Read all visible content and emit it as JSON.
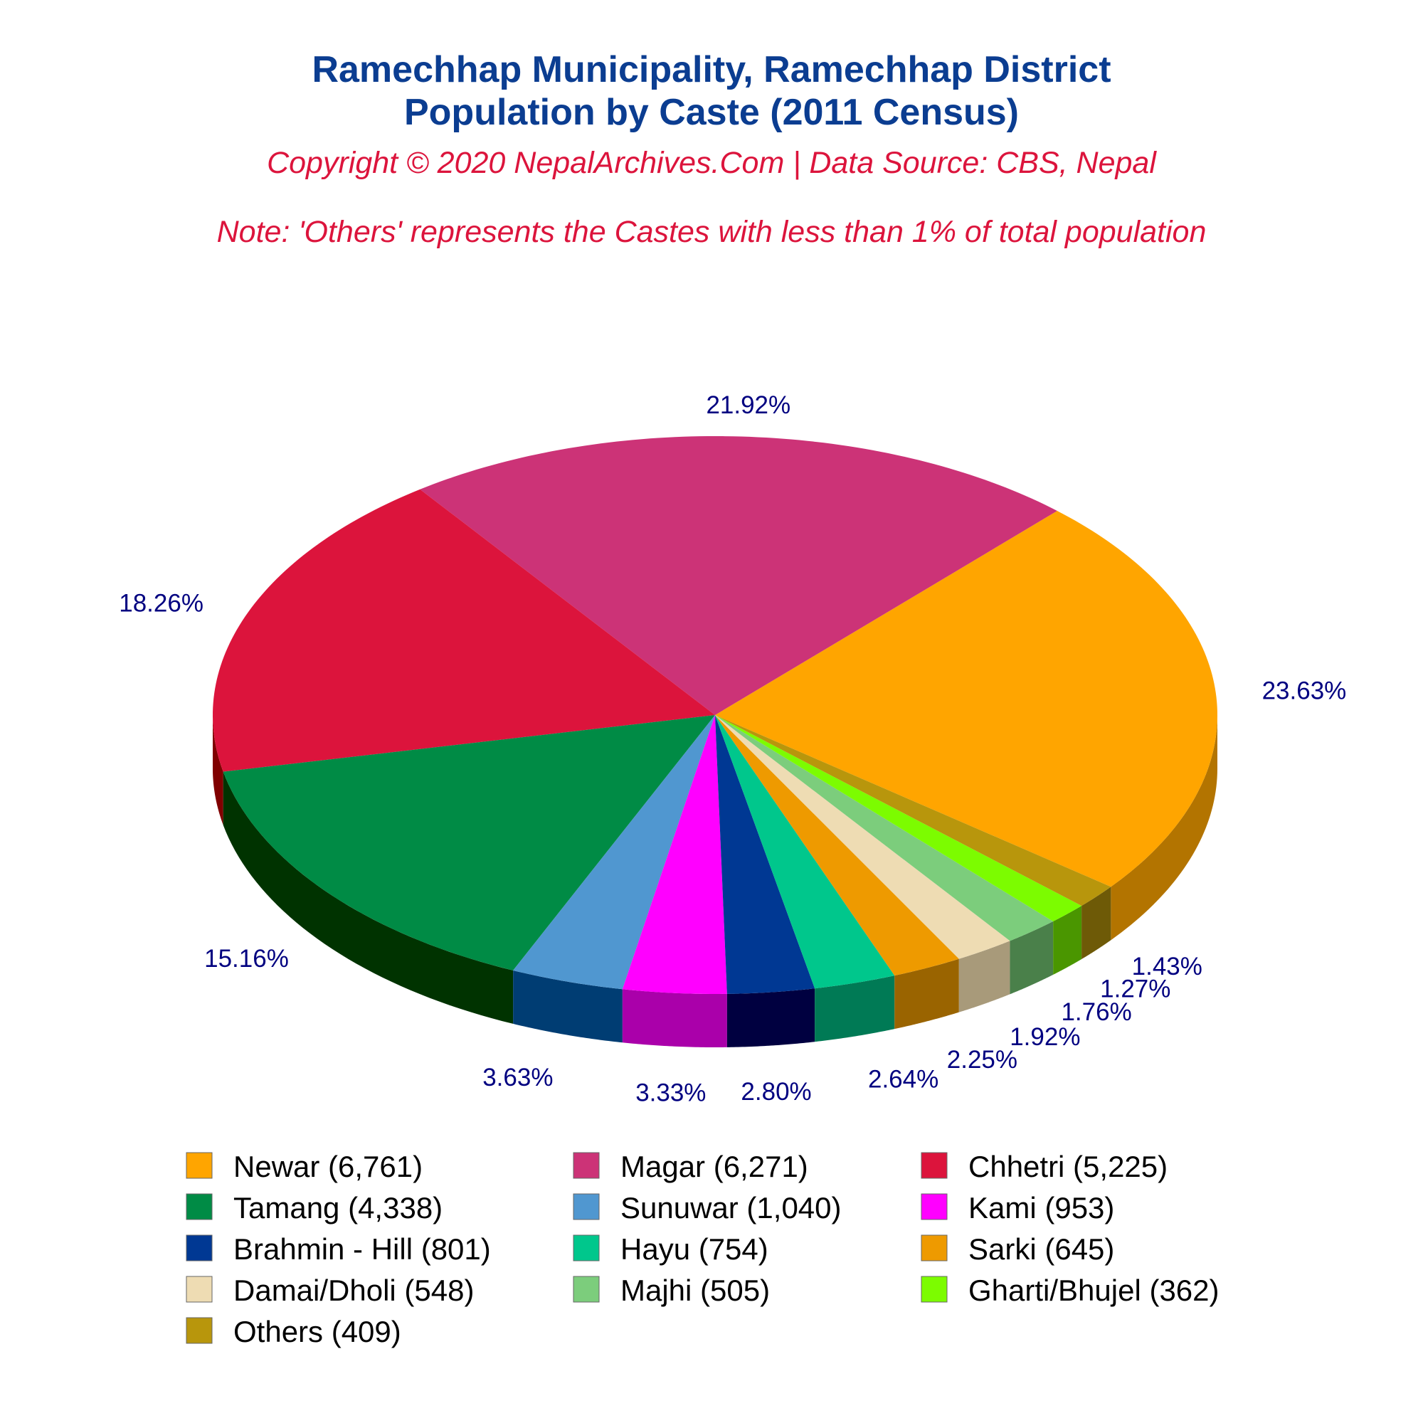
{
  "chart_data": {
    "type": "pie",
    "title_line1": "Ramechhap Municipality, Ramechhap District",
    "title_line2": "Population by Caste (2011 Census)",
    "subtitle": "Copyright © 2020 NepalArchives.Com | Data Source: CBS, Nepal",
    "note": "Note: 'Others' represents the Castes with less than 1% of total population",
    "legend_position": "bottom",
    "slices": [
      {
        "name": "Newar",
        "value": 6761,
        "percent": "23.63%",
        "color": "#ffa500",
        "dark": "#b37400",
        "legend": "Newar (6,761)"
      },
      {
        "name": "Magar",
        "value": 6271,
        "percent": "21.92%",
        "color": "#cc3377",
        "dark": "#7a1f47",
        "legend": "Magar (6,271)"
      },
      {
        "name": "Chhetri",
        "value": 5225,
        "percent": "18.26%",
        "color": "#dc143c",
        "dark": "#800000",
        "legend": "Chhetri (5,225)"
      },
      {
        "name": "Tamang",
        "value": 4338,
        "percent": "15.16%",
        "color": "#008b45",
        "dark": "#003300",
        "legend": "Tamang (4,338)"
      },
      {
        "name": "Sunuwar",
        "value": 1040,
        "percent": "3.63%",
        "color": "#5097d0",
        "dark": "#003d73",
        "legend": "Sunuwar (1,040)"
      },
      {
        "name": "Kami",
        "value": 953,
        "percent": "3.33%",
        "color": "#ff00ff",
        "dark": "#aa00aa",
        "legend": "Kami (953)"
      },
      {
        "name": "Brahmin - Hill",
        "value": 801,
        "percent": "2.80%",
        "color": "#003893",
        "dark": "#000040",
        "legend": "Brahmin - Hill (801)"
      },
      {
        "name": "Hayu",
        "value": 754,
        "percent": "2.64%",
        "color": "#00c78c",
        "dark": "#007a55",
        "legend": "Hayu (754)"
      },
      {
        "name": "Sarki",
        "value": 645,
        "percent": "2.25%",
        "color": "#ee9a00",
        "dark": "#9a6400",
        "legend": "Sarki (645)"
      },
      {
        "name": "Damai/Dholi",
        "value": 548,
        "percent": "1.92%",
        "color": "#eedcb3",
        "dark": "#a89a7a",
        "legend": "Damai/Dholi (548)"
      },
      {
        "name": "Majhi",
        "value": 505,
        "percent": "1.76%",
        "color": "#7ccd7c",
        "dark": "#4a804a",
        "legend": "Majhi (505)"
      },
      {
        "name": "Gharti/Bhujel",
        "value": 362,
        "percent": "1.27%",
        "color": "#7cfc00",
        "dark": "#4a9600",
        "legend": "Gharti/Bhujel (362)"
      },
      {
        "name": "Others",
        "value": 409,
        "percent": "1.43%",
        "color": "#b8960c",
        "dark": "#6e5a07",
        "legend": "Others (409)"
      }
    ]
  }
}
